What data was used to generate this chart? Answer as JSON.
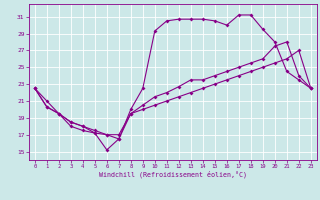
{
  "bg_color": "#cce8e8",
  "line_color": "#880088",
  "xlabel": "Windchill (Refroidissement éolien,°C)",
  "xlim": [
    -0.5,
    23.5
  ],
  "ylim": [
    14.0,
    32.5
  ],
  "xticks": [
    0,
    1,
    2,
    3,
    4,
    5,
    6,
    7,
    8,
    9,
    10,
    11,
    12,
    13,
    14,
    15,
    16,
    17,
    18,
    19,
    20,
    21,
    22,
    23
  ],
  "yticks": [
    15,
    17,
    19,
    21,
    23,
    25,
    27,
    29,
    31
  ],
  "line1": {
    "x": [
      0,
      1,
      2,
      3,
      4,
      5,
      6,
      7,
      8,
      9,
      10,
      11,
      12,
      13,
      14,
      15,
      16,
      17,
      18,
      19,
      20,
      21,
      22,
      23
    ],
    "y": [
      22.5,
      21.0,
      19.5,
      18.5,
      18.0,
      17.2,
      15.2,
      16.5,
      20.0,
      22.5,
      29.3,
      30.5,
      30.7,
      30.7,
      30.7,
      30.5,
      30.0,
      31.2,
      31.2,
      29.5,
      28.0,
      24.5,
      23.5,
      22.5
    ]
  },
  "line2": {
    "x": [
      0,
      1,
      2,
      3,
      4,
      5,
      6,
      7,
      8,
      9,
      10,
      11,
      12,
      13,
      14,
      15,
      16,
      17,
      18,
      19,
      20,
      21,
      22,
      23
    ],
    "y": [
      22.5,
      20.3,
      19.5,
      18.0,
      17.5,
      17.2,
      17.0,
      16.5,
      19.5,
      20.5,
      21.5,
      22.0,
      22.7,
      23.5,
      23.5,
      24.0,
      24.5,
      25.0,
      25.5,
      26.0,
      27.5,
      28.0,
      24.0,
      22.5
    ]
  },
  "line3": {
    "x": [
      0,
      1,
      2,
      3,
      4,
      5,
      6,
      7,
      8,
      9,
      10,
      11,
      12,
      13,
      14,
      15,
      16,
      17,
      18,
      19,
      20,
      21,
      22,
      23
    ],
    "y": [
      22.5,
      20.3,
      19.5,
      18.5,
      18.0,
      17.5,
      17.0,
      17.0,
      19.5,
      20.0,
      20.5,
      21.0,
      21.5,
      22.0,
      22.5,
      23.0,
      23.5,
      24.0,
      24.5,
      25.0,
      25.5,
      26.0,
      27.0,
      22.5
    ]
  }
}
